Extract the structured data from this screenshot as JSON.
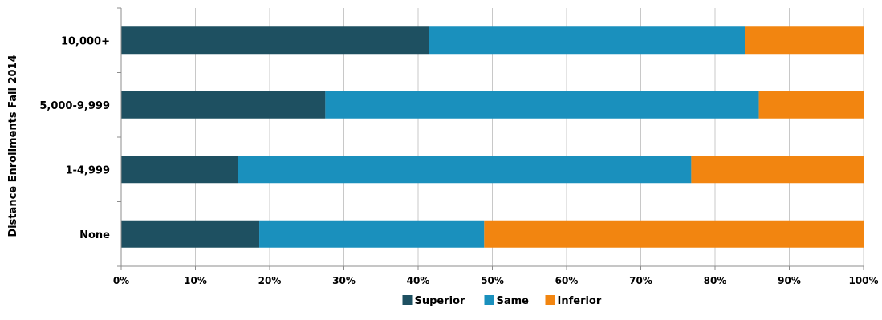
{
  "chart_data": {
    "type": "bar",
    "orientation": "horizontal",
    "stacked": "percent",
    "categories": [
      "10,000+",
      "5,000-9,999",
      "1-4,999",
      "None"
    ],
    "series": [
      {
        "name": "Superior",
        "color": "#1e5061",
        "values": [
          41.5,
          27.5,
          15.7,
          18.6
        ]
      },
      {
        "name": "Same",
        "color": "#1a90bd",
        "values": [
          42.5,
          58.4,
          61.1,
          30.3
        ]
      },
      {
        "name": "Inferior",
        "color": "#f28510",
        "values": [
          16.0,
          14.1,
          23.2,
          51.1
        ]
      }
    ],
    "ylabel": "Distance Enrollments Fall 2014",
    "xlabel": "",
    "xlim": [
      0,
      100
    ],
    "x_ticks": [
      "0%",
      "10%",
      "20%",
      "30%",
      "40%",
      "50%",
      "60%",
      "70%",
      "80%",
      "90%",
      "100%"
    ],
    "grid": "vertical",
    "legend": "bottom"
  }
}
